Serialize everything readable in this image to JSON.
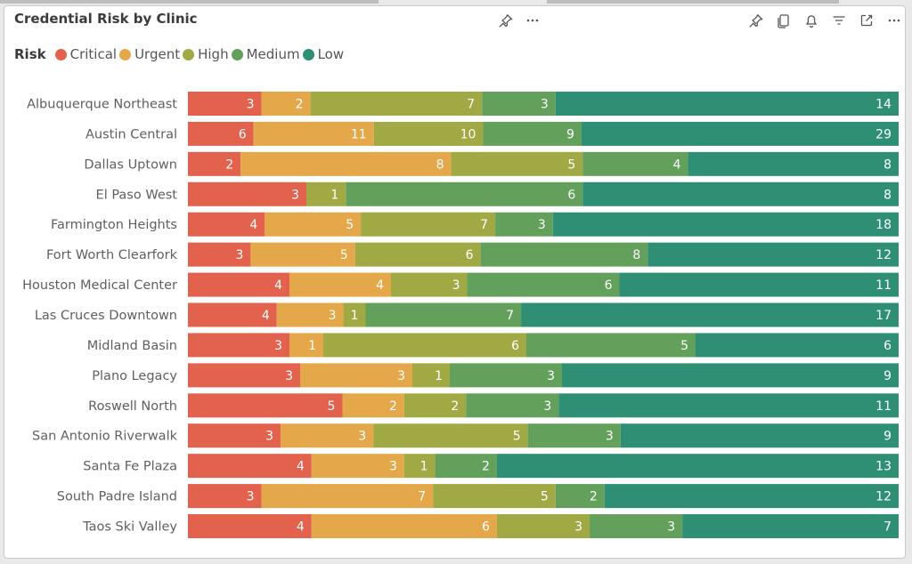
{
  "visual": {
    "title": "Credential Risk by Clinic"
  },
  "icons": {
    "header": [
      "pin-icon",
      "more-options-icon"
    ],
    "toolbar": [
      "pin-icon",
      "copy-visual-icon",
      "alert-bell-icon",
      "filter-icon",
      "focus-mode-icon",
      "more-options-icon"
    ]
  },
  "legend": {
    "title": "Risk",
    "items": [
      {
        "label": "Critical",
        "color": "#e2624e"
      },
      {
        "label": "Urgent",
        "color": "#e4a74a"
      },
      {
        "label": "High",
        "color": "#a0a944"
      },
      {
        "label": "Medium",
        "color": "#63a05b"
      },
      {
        "label": "Low",
        "color": "#2f8f75"
      }
    ]
  },
  "chart_data": {
    "type": "bar",
    "orientation": "horizontal",
    "stacked": true,
    "title": "Credential Risk by Clinic",
    "xlabel": "",
    "ylabel": "",
    "legend_title": "Risk",
    "legend_position": "top-left",
    "categories": [
      "Albuquerque Northeast",
      "Austin Central",
      "Dallas Uptown",
      "El Paso West",
      "Farmington Heights",
      "Fort Worth Clearfork",
      "Houston Medical Center",
      "Las Cruces Downtown",
      "Midland Basin",
      "Plano Legacy",
      "Roswell North",
      "San Antonio Riverwalk",
      "Santa Fe Plaza",
      "South Padre Island",
      "Taos Ski Valley"
    ],
    "series": [
      {
        "name": "Critical",
        "color": "#e2624e",
        "values": [
          3,
          6,
          2,
          3,
          4,
          3,
          4,
          4,
          3,
          3,
          5,
          3,
          4,
          3,
          4
        ]
      },
      {
        "name": "Urgent",
        "color": "#e4a74a",
        "values": [
          2,
          11,
          8,
          0,
          5,
          5,
          4,
          3,
          1,
          3,
          2,
          3,
          3,
          7,
          6
        ]
      },
      {
        "name": "High",
        "color": "#a0a944",
        "values": [
          7,
          10,
          5,
          1,
          7,
          6,
          3,
          1,
          6,
          1,
          2,
          5,
          1,
          5,
          3
        ]
      },
      {
        "name": "Medium",
        "color": "#63a05b",
        "values": [
          3,
          9,
          4,
          6,
          3,
          8,
          6,
          7,
          5,
          3,
          3,
          3,
          2,
          2,
          3
        ]
      },
      {
        "name": "Low",
        "color": "#2f8f75",
        "values": [
          14,
          29,
          8,
          8,
          18,
          12,
          11,
          17,
          6,
          9,
          11,
          9,
          13,
          12,
          7
        ]
      }
    ]
  }
}
